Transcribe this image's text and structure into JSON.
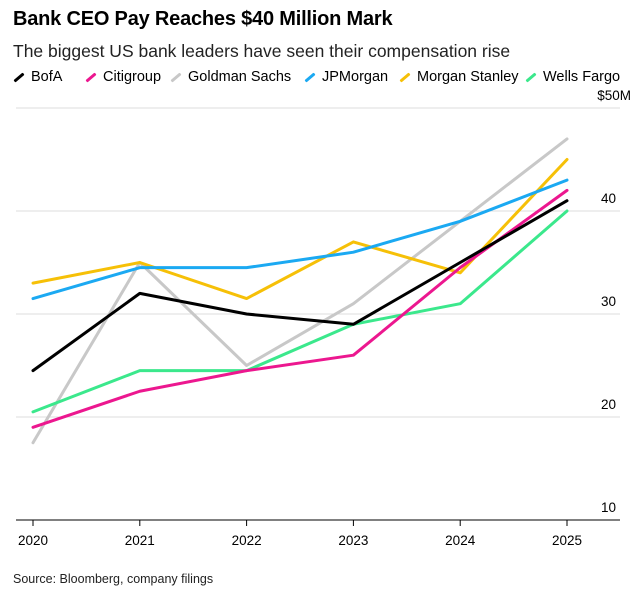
{
  "title": "Bank CEO Pay Reaches $40 Million Mark",
  "subtitle": "The biggest US bank leaders have seen their compensation rise",
  "source": "Source: Bloomberg, company filings",
  "chart_data": {
    "type": "line",
    "x": [
      "2020",
      "2021",
      "2022",
      "2023",
      "2024",
      "2025"
    ],
    "y_ticks": [
      10,
      20,
      30,
      40
    ],
    "y_top_label": "$50M",
    "ylim": [
      10,
      50
    ],
    "grid": true,
    "legend_position": "top",
    "series": [
      {
        "name": "BofA",
        "color": "#000000",
        "values": [
          24.5,
          32,
          30,
          29,
          35,
          41
        ]
      },
      {
        "name": "Citigroup",
        "color": "#ec178f",
        "values": [
          19,
          22.5,
          24.5,
          26,
          34.5,
          42
        ]
      },
      {
        "name": "Goldman Sachs",
        "color": "#c8c8c8",
        "values": [
          17.5,
          35,
          25,
          31,
          39,
          47
        ]
      },
      {
        "name": "JPMorgan",
        "color": "#1ba9f2",
        "values": [
          31.5,
          34.5,
          34.5,
          36,
          39,
          43
        ]
      },
      {
        "name": "Morgan Stanley",
        "color": "#f6c007",
        "values": [
          33,
          35,
          31.5,
          37,
          34,
          45
        ]
      },
      {
        "name": "Wells Fargo",
        "color": "#3be88c",
        "values": [
          20.5,
          24.5,
          24.5,
          29,
          31,
          40
        ]
      }
    ]
  }
}
